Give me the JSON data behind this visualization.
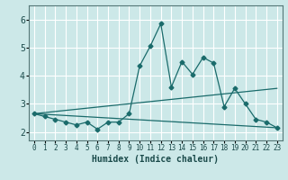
{
  "xlabel": "Humidex (Indice chaleur)",
  "xlim": [
    -0.5,
    23.5
  ],
  "ylim": [
    1.7,
    6.5
  ],
  "yticks": [
    2,
    3,
    4,
    5,
    6
  ],
  "xticks": [
    0,
    1,
    2,
    3,
    4,
    5,
    6,
    7,
    8,
    9,
    10,
    11,
    12,
    13,
    14,
    15,
    16,
    17,
    18,
    19,
    20,
    21,
    22,
    23
  ],
  "bg_color": "#cce8e8",
  "grid_color": "#ffffff",
  "grid_minor_color": "#e0f4f4",
  "line_color": "#1a6b6b",
  "main_line_x": [
    0,
    1,
    2,
    3,
    4,
    5,
    6,
    7,
    8,
    9,
    10,
    11,
    12,
    13,
    14,
    15,
    16,
    17,
    18,
    19,
    20,
    21,
    22,
    23
  ],
  "main_line_y": [
    2.65,
    2.55,
    2.45,
    2.35,
    2.25,
    2.35,
    2.1,
    2.35,
    2.35,
    2.65,
    4.35,
    5.05,
    5.85,
    3.6,
    4.5,
    4.05,
    4.65,
    4.45,
    2.9,
    3.55,
    3.0,
    2.45,
    2.35,
    2.15
  ],
  "upper_line_x": [
    0,
    23
  ],
  "upper_line_y": [
    2.65,
    3.55
  ],
  "lower_line_x": [
    0,
    23
  ],
  "lower_line_y": [
    2.65,
    2.15
  ],
  "marker": "D",
  "marker_size": 2.5
}
